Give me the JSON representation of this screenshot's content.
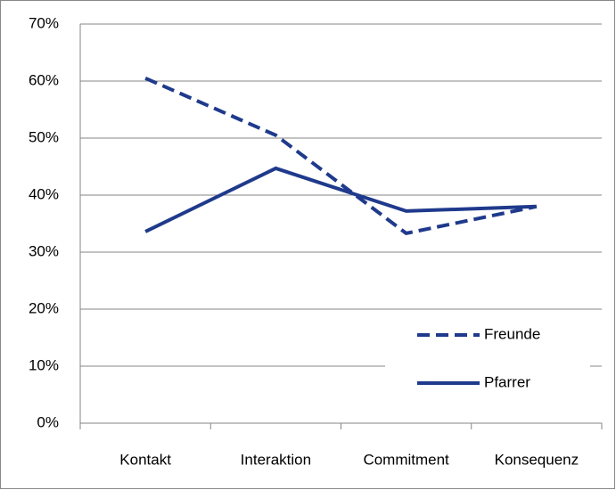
{
  "chart_data": {
    "type": "line",
    "categories": [
      "Kontakt",
      "Interaktion",
      "Commitment",
      "Konsequenz"
    ],
    "series": [
      {
        "name": "Freunde",
        "color": "#1f3a8c",
        "style": "dashed",
        "values": [
          60.5,
          50.5,
          33.3,
          38.0
        ]
      },
      {
        "name": "Pfarrer",
        "color": "#1f3a8c",
        "style": "solid",
        "values": [
          33.6,
          44.7,
          37.2,
          38.0
        ]
      }
    ],
    "ylim": [
      0,
      70
    ],
    "yticks": [
      {
        "value": 0,
        "label": "0%"
      },
      {
        "value": 10,
        "label": "10%"
      },
      {
        "value": 20,
        "label": "20%"
      },
      {
        "value": 30,
        "label": "30%"
      },
      {
        "value": 40,
        "label": "40%"
      },
      {
        "value": 50,
        "label": "50%"
      },
      {
        "value": 60,
        "label": "60%"
      },
      {
        "value": 70,
        "label": "70%"
      }
    ],
    "grid": true,
    "legend": "lower right"
  }
}
